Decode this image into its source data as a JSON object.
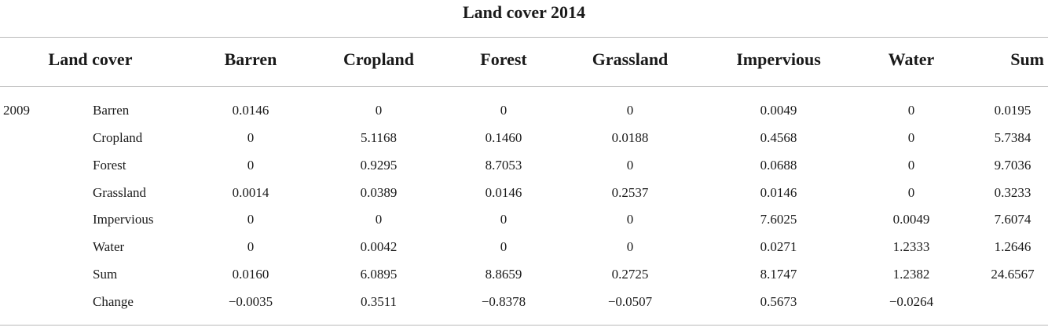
{
  "title": "Land cover 2014",
  "header": {
    "landcover": "Land cover",
    "columns": [
      "Barren",
      "Cropland",
      "Forest",
      "Grassland",
      "Impervious",
      "Water",
      "Sum"
    ]
  },
  "rows": [
    {
      "year": "2009",
      "label": "Barren",
      "values": [
        "0.0146",
        "0",
        "0",
        "0",
        "0.0049",
        "0",
        "0.0195"
      ]
    },
    {
      "year": "",
      "label": "Cropland",
      "values": [
        "0",
        "5.1168",
        "0.1460",
        "0.0188",
        "0.4568",
        "0",
        "5.7384"
      ]
    },
    {
      "year": "",
      "label": "Forest",
      "values": [
        "0",
        "0.9295",
        "8.7053",
        "0",
        "0.0688",
        "0",
        "9.7036"
      ]
    },
    {
      "year": "",
      "label": "Grassland",
      "values": [
        "0.0014",
        "0.0389",
        "0.0146",
        "0.2537",
        "0.0146",
        "0",
        "0.3233"
      ]
    },
    {
      "year": "",
      "label": "Impervious",
      "values": [
        "0",
        "0",
        "0",
        "0",
        "7.6025",
        "0.0049",
        "7.6074"
      ]
    },
    {
      "year": "",
      "label": "Water",
      "values": [
        "0",
        "0.0042",
        "0",
        "0",
        "0.0271",
        "1.2333",
        "1.2646"
      ]
    },
    {
      "year": "",
      "label": "Sum",
      "values": [
        "0.0160",
        "6.0895",
        "8.8659",
        "0.2725",
        "8.1747",
        "1.2382",
        "24.6567"
      ]
    },
    {
      "year": "",
      "label": "Change",
      "values": [
        "−0.0035",
        "0.3511",
        "−0.8378",
        "−0.0507",
        "0.5673",
        "−0.0264",
        ""
      ]
    }
  ]
}
